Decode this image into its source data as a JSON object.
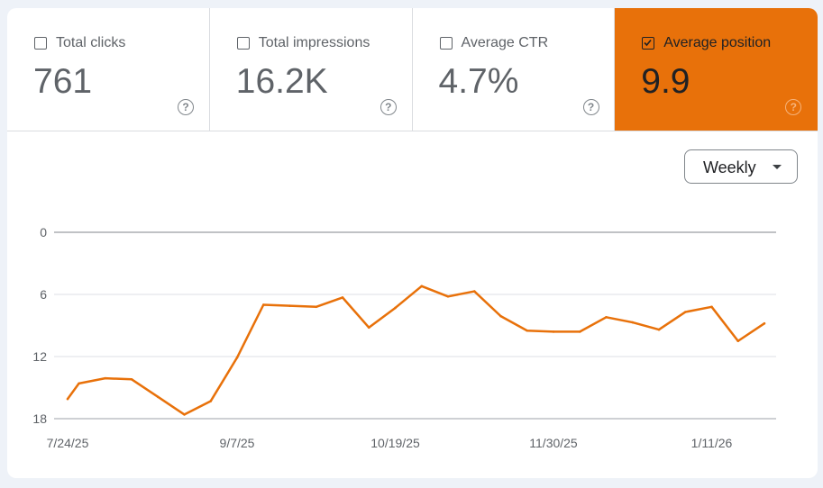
{
  "metrics": [
    {
      "label": "Total clicks",
      "value": "761",
      "checked": false
    },
    {
      "label": "Total impressions",
      "value": "16.2K",
      "checked": false
    },
    {
      "label": "Average CTR",
      "value": "4.7%",
      "checked": false
    },
    {
      "label": "Average position",
      "value": "9.9",
      "checked": true
    }
  ],
  "help_glyph": "?",
  "granularity": {
    "selected": "Weekly"
  },
  "colors": {
    "accent": "#e8710a",
    "line": "#e8710a"
  },
  "chart_data": {
    "type": "line",
    "title": "",
    "xlabel": "",
    "ylabel": "",
    "y_inverted": true,
    "ylim": [
      0,
      18
    ],
    "y_ticks": [
      "0",
      "6",
      "12",
      "18"
    ],
    "x_tick_labels": [
      "7/24/25",
      "9/7/25",
      "10/19/25",
      "11/30/25",
      "1/11/26"
    ],
    "grid": true,
    "series": [
      {
        "x": [
          "2025-07-24",
          "2025-07-27",
          "2025-08-03",
          "2025-08-10",
          "2025-08-17",
          "2025-08-24",
          "2025-08-31",
          "2025-09-07",
          "2025-09-14",
          "2025-09-21",
          "2025-09-28",
          "2025-10-05",
          "2025-10-12",
          "2025-10-19",
          "2025-10-26",
          "2025-11-02",
          "2025-11-09",
          "2025-11-16",
          "2025-11-23",
          "2025-11-30",
          "2025-12-07",
          "2025-12-14",
          "2025-12-21",
          "2025-12-28",
          "2026-01-04",
          "2026-01-11",
          "2026-01-18",
          "2026-01-25"
        ],
        "values": [
          16.1,
          14.6,
          14.1,
          14.2,
          15.9,
          17.6,
          16.3,
          12.1,
          7.0,
          7.1,
          7.2,
          6.3,
          9.2,
          7.3,
          5.2,
          6.2,
          5.7,
          8.1,
          9.5,
          9.6,
          9.6,
          8.2,
          8.7,
          9.4,
          7.7,
          7.2,
          10.5,
          8.8
        ]
      }
    ]
  }
}
